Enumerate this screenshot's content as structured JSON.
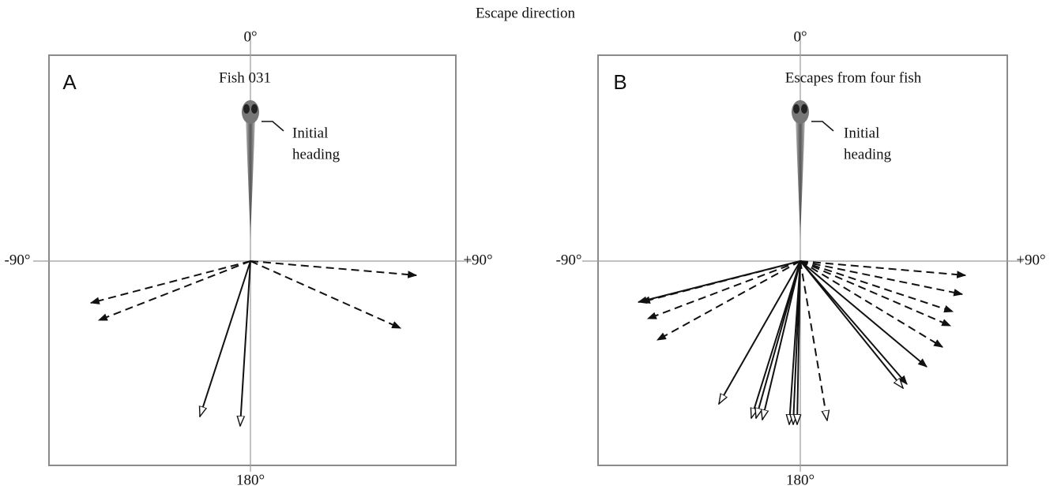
{
  "title": "Escape direction",
  "panels": [
    {
      "letter": "A",
      "caption": "Fish 031",
      "annotation": [
        "Initial",
        "heading"
      ],
      "axis_labels": {
        "top": "0°",
        "left": "-90°",
        "right": "+90°",
        "bottom": "180°"
      }
    },
    {
      "letter": "B",
      "caption": "Escapes from four fish",
      "annotation": [
        "Initial",
        "heading"
      ],
      "axis_labels": {
        "top": "0°",
        "left": "-90°",
        "right": "+90°",
        "bottom": "180°"
      }
    }
  ]
}
